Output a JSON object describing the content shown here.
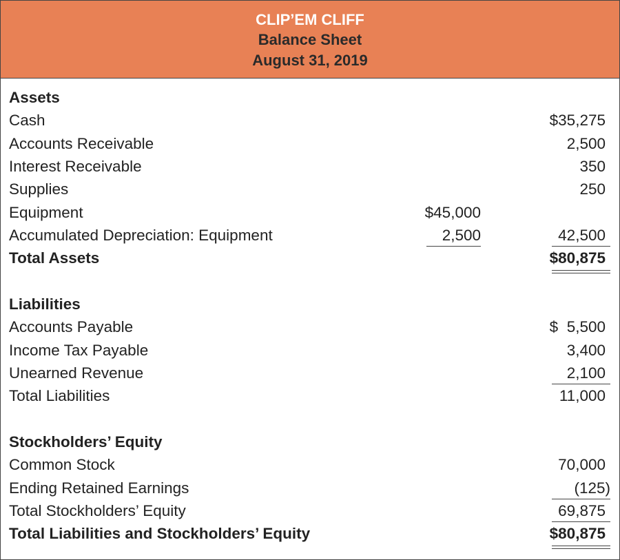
{
  "header": {
    "company": "CLIP’EM CLIFF",
    "statement": "Balance Sheet",
    "date": "August 31, 2019",
    "background_color": "#E88155"
  },
  "rows": [
    {
      "label": "Assets",
      "bold": true
    },
    {
      "label": "Cash",
      "col2": "$35,275"
    },
    {
      "label": "Accounts Receivable",
      "col2": "2,500"
    },
    {
      "label": "Interest Receivable",
      "col2": "350"
    },
    {
      "label": "Supplies",
      "col2": "250"
    },
    {
      "label": "Equipment",
      "col1": "$45,000"
    },
    {
      "label": "Accumulated Depreciation: Equipment",
      "col1": "2,500",
      "col1_underline": "single",
      "col2": "42,500",
      "col2_underline": "single"
    },
    {
      "label": "Total Assets",
      "bold": true,
      "col2": "$80,875",
      "col2_underline": "double"
    },
    {
      "label": ""
    },
    {
      "label": "Liabilities",
      "bold": true
    },
    {
      "label": "Accounts Payable",
      "col2": "$  5,500"
    },
    {
      "label": "Income Tax Payable",
      "col2": "3,400"
    },
    {
      "label": "Unearned Revenue",
      "col2": "2,100",
      "col2_underline": "single"
    },
    {
      "label": "Total Liabilities",
      "col2": "11,000"
    },
    {
      "label": ""
    },
    {
      "label": "Stockholders’ Equity",
      "bold": true
    },
    {
      "label": "Common Stock",
      "col2": "70,000"
    },
    {
      "label": "Ending Retained Earnings",
      "col2": "(125)",
      "col2_underline": "single"
    },
    {
      "label": "Total Stockholders’ Equity",
      "col2": "69,875",
      "col2_underline": "single"
    },
    {
      "label": "Total Liabilities and Stockholders’ Equity",
      "bold": true,
      "col2": "$80,875",
      "col2_underline": "double"
    }
  ]
}
